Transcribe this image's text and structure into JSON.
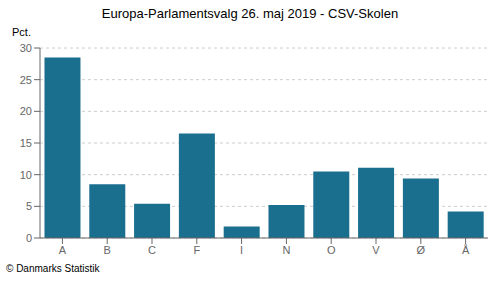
{
  "chart_data": {
    "type": "bar",
    "title": "Europa-Parlamentsvalg 26. maj 2019 - CSV-Skolen",
    "ylabel": "Pct.",
    "annotations": [
      "© Danmarks Statistik"
    ],
    "categories": [
      "A",
      "B",
      "C",
      "F",
      "I",
      "N",
      "O",
      "V",
      "Ø",
      "Å"
    ],
    "values": [
      28.5,
      8.5,
      5.4,
      16.5,
      1.8,
      5.2,
      10.5,
      11.1,
      9.4,
      4.2
    ],
    "color": "#1a6e8e",
    "ylim": [
      0,
      30
    ],
    "yticks": [
      0,
      5,
      10,
      15,
      20,
      25,
      30
    ],
    "grid": true
  }
}
